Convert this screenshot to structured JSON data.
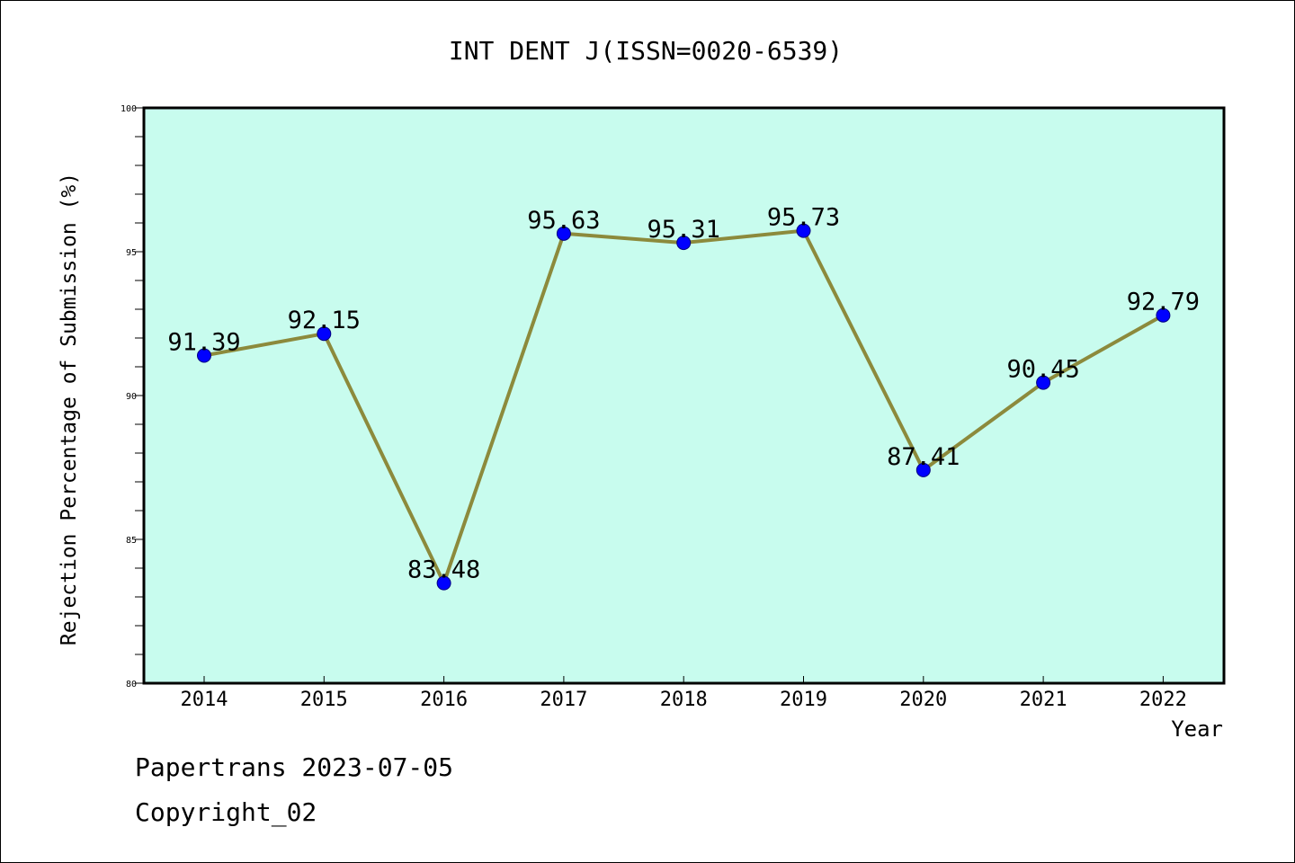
{
  "chart_data": {
    "type": "line",
    "title": "INT DENT J(ISSN=0020-6539)",
    "xlabel": "Year",
    "ylabel": "Rejection Percentage of Submission (%)",
    "x": [
      "2014",
      "2015",
      "2016",
      "2017",
      "2018",
      "2019",
      "2020",
      "2021",
      "2022"
    ],
    "values": [
      91.39,
      92.15,
      83.48,
      95.63,
      95.31,
      95.73,
      87.41,
      90.45,
      92.79
    ],
    "data_labels": [
      "91.39",
      "92.15",
      "83.48",
      "95.63",
      "95.31",
      "95.73",
      "87.41",
      "90.45",
      "92.79"
    ],
    "ylim": [
      80,
      100
    ],
    "y_ticks": [
      80,
      85,
      90,
      95,
      100
    ],
    "y_tick_labels": [
      "80",
      "85",
      "90",
      "95",
      "100"
    ],
    "grid": false,
    "legend": "none",
    "colors": {
      "plot_background": "#c8fcee",
      "line": "#8c8a3c",
      "marker": "#0000ff",
      "axis": "#000000"
    }
  },
  "footer": {
    "line1": "Papertrans 2023-07-05",
    "line2": "Copyright_02"
  }
}
